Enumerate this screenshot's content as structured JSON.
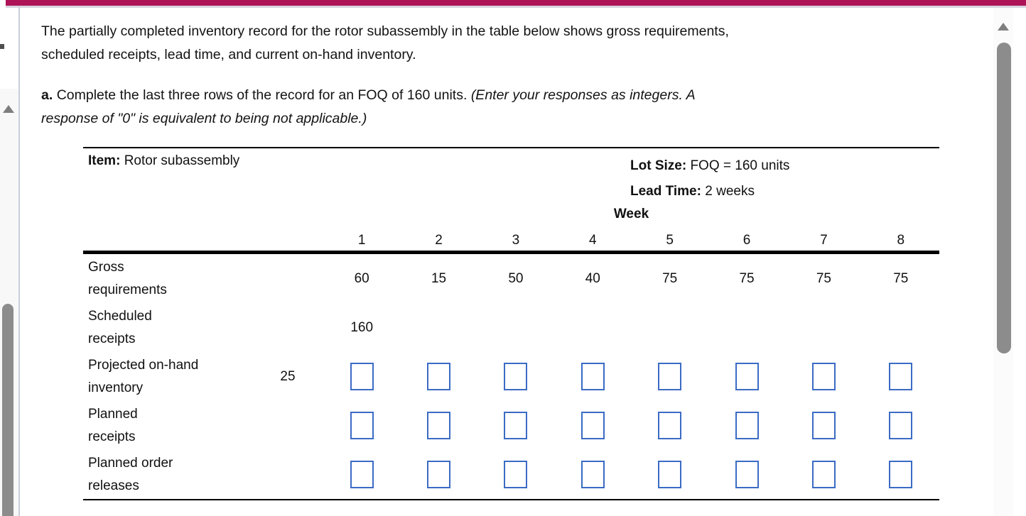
{
  "problem": {
    "line1": "The partially completed inventory record for the rotor subassembly in the table below shows gross requirements,",
    "line2": "scheduled receipts, lead time, and current on-hand inventory."
  },
  "part_a": {
    "label": "a.",
    "text": "Complete the last three rows of the record for an FOQ of 160 units.",
    "note_line1": "(Enter your responses as integers. A",
    "note_line2": "response of \"0\" is equivalent to being not applicable.)"
  },
  "table": {
    "item_label": "Item:",
    "item_value": "Rotor subassembly",
    "lot_size_label": "Lot Size:",
    "lot_size_value": "FOQ = 160 units",
    "lead_time_label": "Lead Time:",
    "lead_time_value": "2 weeks",
    "week_label": "Week",
    "week_numbers": [
      "1",
      "2",
      "3",
      "4",
      "5",
      "6",
      "7",
      "8"
    ],
    "rows": [
      {
        "id": "gross-requirements",
        "label_line1": "Gross",
        "label_line2": "requirements",
        "initial": "",
        "type": "text",
        "cells": [
          "60",
          "15",
          "50",
          "40",
          "75",
          "75",
          "75",
          "75"
        ]
      },
      {
        "id": "scheduled-receipts",
        "label_line1": "Scheduled",
        "label_line2": "receipts",
        "initial": "",
        "type": "text",
        "cells": [
          "160",
          "",
          "",
          "",
          "",
          "",
          "",
          ""
        ]
      },
      {
        "id": "projected-on-hand-inventory",
        "label_line1": "Projected on-hand",
        "label_line2": "inventory",
        "initial": "25",
        "type": "input",
        "cells": [
          "",
          "",
          "",
          "",
          "",
          "",
          "",
          ""
        ]
      },
      {
        "id": "planned-receipts",
        "label_line1": "Planned",
        "label_line2": "receipts",
        "initial": "",
        "type": "input",
        "cells": [
          "",
          "",
          "",
          "",
          "",
          "",
          "",
          ""
        ]
      },
      {
        "id": "planned-order-releases",
        "label_line1": "Planned order",
        "label_line2": "releases",
        "initial": "",
        "type": "input",
        "cells": [
          "",
          "",
          "",
          "",
          "",
          "",
          "",
          ""
        ]
      }
    ]
  },
  "colors": {
    "accent": "#AE1357",
    "accent-underline": "#D8D4DE",
    "divider": "#C9CEDA",
    "scroll-thumb": "#8C8C8C",
    "scroll-arrow": "#7E7E7E",
    "rail-bg": "#F8F8F9",
    "box-border": "#3B6BC4",
    "ink": "#111111"
  }
}
